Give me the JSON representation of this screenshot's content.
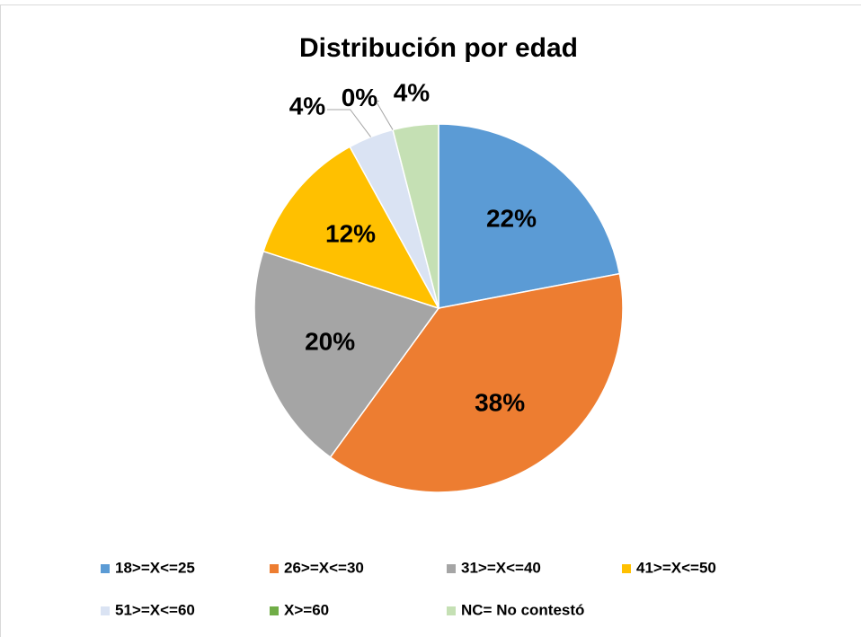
{
  "chart_data": {
    "type": "pie",
    "title": "Distribución por edad",
    "categories": [
      "18>=X<=25",
      "26>=X<=30",
      "31>=X<=40",
      "41>=X<=50",
      "51>=X<=60",
      "X>=60",
      "NC= No contestó"
    ],
    "values": [
      22,
      38,
      20,
      12,
      4,
      0,
      4
    ],
    "value_labels": [
      "22%",
      "38%",
      "20%",
      "12%",
      "4%",
      "0%",
      "4%"
    ],
    "colors": [
      "#5b9bd5",
      "#ed7d31",
      "#a5a5a5",
      "#ffc000",
      "#dae3f3",
      "#70ad47",
      "#c5e0b4"
    ],
    "legend": "bottom"
  }
}
